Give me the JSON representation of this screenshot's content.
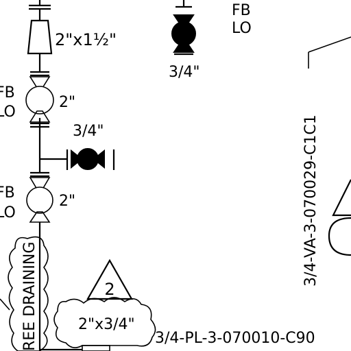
{
  "labels": {
    "reducer_top": "2\"x1½\"",
    "valve_top_right_size": "3/4\"",
    "valve_top_right_fb": "FB",
    "valve_top_right_lo": "LO",
    "ball_valve_upper_fb": "FB",
    "ball_valve_upper_lo": "LO",
    "ball_valve_upper_size": "2\"",
    "branch_valve_size": "3/4\"",
    "ball_valve_lower_fb": "FB",
    "ball_valve_lower_lo": "LO",
    "ball_valve_lower_size": "2\"",
    "cloud_left_text": "REE  DRAINING",
    "revision_number": "2",
    "cloud_reducer": "2\"x3/4\"",
    "line_number_vertical": "3/4-VA-3-070029-C1C1",
    "line_number_horizontal": "3/4-PL-3-070010-C90"
  }
}
